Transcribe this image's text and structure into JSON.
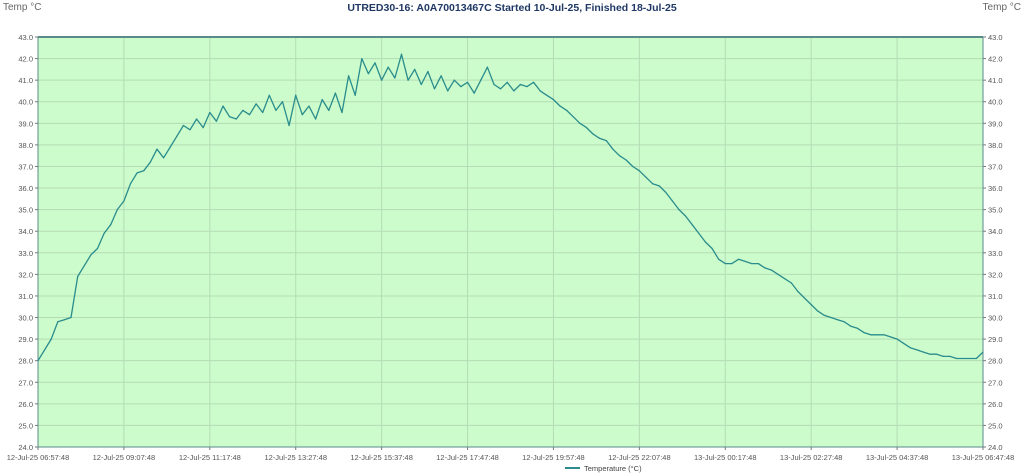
{
  "chart_data": {
    "type": "line",
    "title": "UTRED30-16: A0A70013467C Started 10-Jul-25, Finished 18-Jul-25",
    "ylabel_left": "Temp °C",
    "ylabel_right": "Temp °C",
    "ylim": [
      24.0,
      43.0
    ],
    "y_ticks": [
      "24.0",
      "25.0",
      "26.0",
      "27.0",
      "28.0",
      "29.0",
      "30.0",
      "31.0",
      "32.0",
      "33.0",
      "34.0",
      "35.0",
      "36.0",
      "37.0",
      "38.0",
      "39.0",
      "40.0",
      "41.0",
      "42.0",
      "43.0"
    ],
    "x_ticks": [
      "12-Jul-25 06:57:48",
      "12-Jul-25 09:07:48",
      "12-Jul-25 11:17:48",
      "12-Jul-25 13:27:48",
      "12-Jul-25 15:37:48",
      "12-Jul-25 17:47:48",
      "12-Jul-25 19:57:48",
      "12-Jul-25 22:07:48",
      "13-Jul-25 00:17:48",
      "13-Jul-25 02:27:48",
      "13-Jul-25 04:37:48",
      "13-Jul-25 06:47:48"
    ],
    "grid": true,
    "legend_position": "bottom-center",
    "colors": {
      "line": "#2a8c8c",
      "plot_bg": "#ccfccb",
      "grid": "#b5dcb5",
      "border": "#5a8a8a"
    },
    "series": [
      {
        "name": "Temperature (°C)",
        "sample_interval_minutes": 10,
        "values": [
          28.0,
          28.5,
          29.0,
          29.8,
          29.9,
          30.0,
          31.9,
          32.4,
          32.9,
          33.2,
          33.9,
          34.3,
          35.0,
          35.4,
          36.2,
          36.7,
          36.8,
          37.2,
          37.8,
          37.4,
          37.9,
          38.4,
          38.9,
          38.7,
          39.2,
          38.8,
          39.5,
          39.1,
          39.8,
          39.3,
          39.2,
          39.6,
          39.4,
          39.9,
          39.5,
          40.3,
          39.6,
          40.0,
          38.9,
          40.3,
          39.4,
          39.8,
          39.2,
          40.1,
          39.6,
          40.4,
          39.5,
          41.2,
          40.3,
          42.0,
          41.3,
          41.8,
          41.0,
          41.6,
          41.1,
          42.2,
          41.0,
          41.5,
          40.8,
          41.4,
          40.6,
          41.2,
          40.5,
          41.0,
          40.7,
          40.9,
          40.4,
          41.0,
          41.6,
          40.8,
          40.6,
          40.9,
          40.5,
          40.8,
          40.7,
          40.9,
          40.5,
          40.3,
          40.1,
          39.8,
          39.6,
          39.3,
          39.0,
          38.8,
          38.5,
          38.3,
          38.2,
          37.8,
          37.5,
          37.3,
          37.0,
          36.8,
          36.5,
          36.2,
          36.1,
          35.8,
          35.4,
          35.0,
          34.7,
          34.3,
          33.9,
          33.5,
          33.2,
          32.7,
          32.5,
          32.5,
          32.7,
          32.6,
          32.5,
          32.5,
          32.3,
          32.2,
          32.0,
          31.8,
          31.6,
          31.2,
          30.9,
          30.6,
          30.3,
          30.1,
          30.0,
          29.9,
          29.8,
          29.6,
          29.5,
          29.3,
          29.2,
          29.2,
          29.2,
          29.1,
          29.0,
          28.8,
          28.6,
          28.5,
          28.4,
          28.3,
          28.3,
          28.2,
          28.2,
          28.1,
          28.1,
          28.1,
          28.1,
          28.4
        ]
      }
    ]
  }
}
